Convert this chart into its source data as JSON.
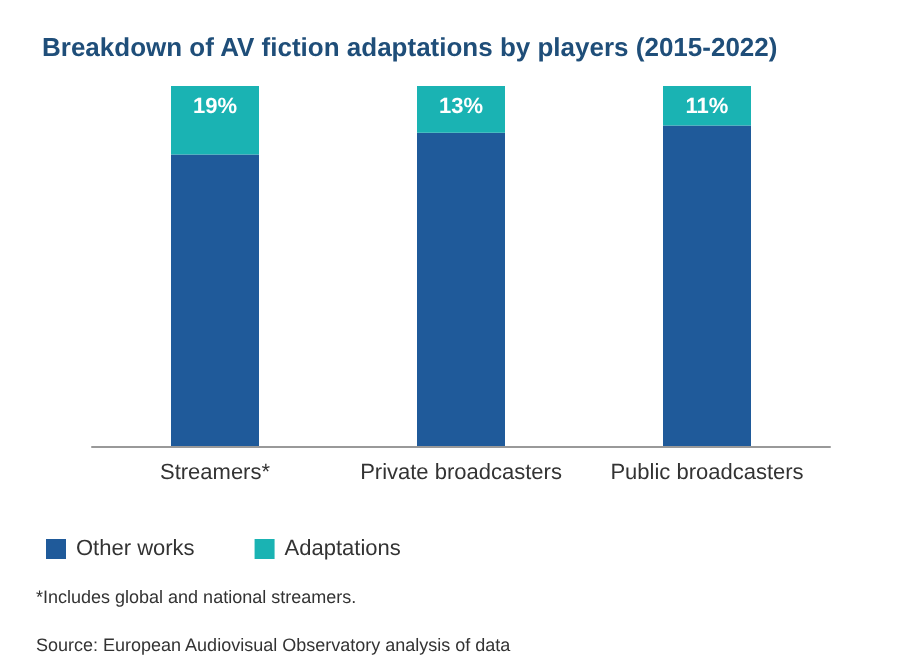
{
  "chart_data": {
    "type": "bar",
    "title": "Breakdown of AV fiction adaptations by players (2015-2022)",
    "categories": [
      "Streamers*",
      "Private broadcasters",
      "Public broadcasters"
    ],
    "stacked": true,
    "ylim": [
      0,
      100
    ],
    "tick_labels": "x",
    "legend": "bottom left",
    "series": [
      {
        "name": "Other works",
        "color": "#1f5a9a",
        "values": [
          81,
          87,
          89
        ]
      },
      {
        "name": "Adaptations",
        "color": "#1ab3b3",
        "values": [
          19,
          13,
          11
        ],
        "value_labels": [
          "19%",
          "13%",
          "11%"
        ]
      }
    ],
    "annotations": [
      "*Includes global and national streamers.",
      "Source: European Audiovisual Observatory analysis of data"
    ]
  }
}
